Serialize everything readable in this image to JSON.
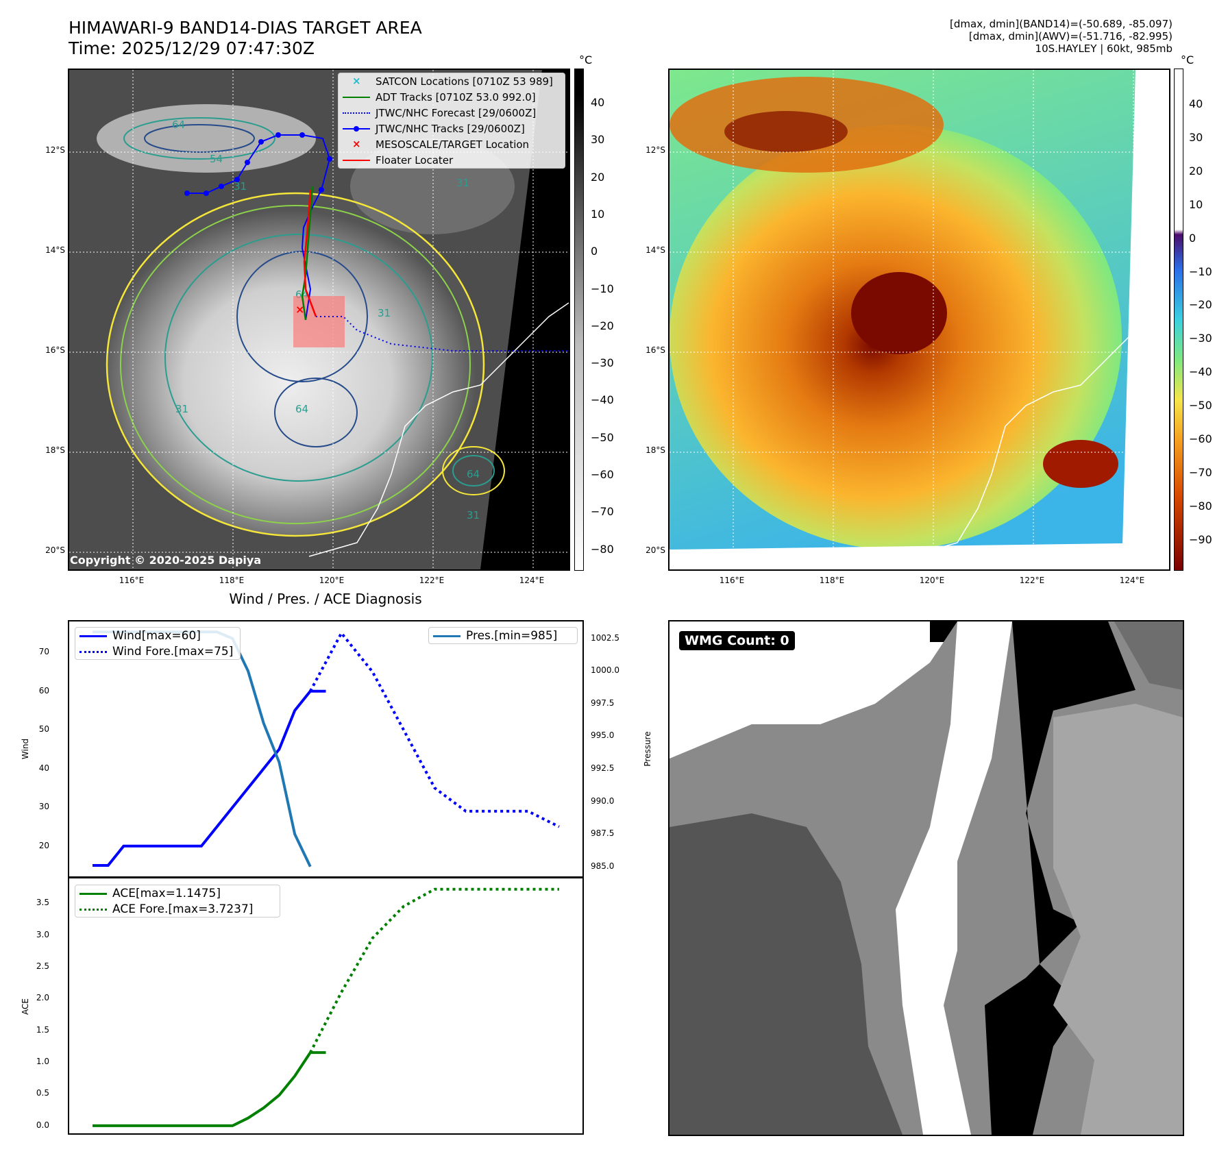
{
  "header": {
    "title": "HIMAWARI-9 BAND14-DIAS TARGET AREA",
    "time": "Time: 2025/12/29 07:47:30Z",
    "info_line1": "[dmax, dmin](BAND14)=(-50.689, -85.097)",
    "info_line2": "[dmax, dmin](AWV)=(-51.716, -82.995)",
    "info_line3": "10S.HAYLEY | 60kt, 985mb",
    "unit": "°C",
    "copyright": "Copyright © 2020-2025 Dapiya"
  },
  "map": {
    "lat_labels": [
      "12°S",
      "14°S",
      "16°S",
      "18°S",
      "20°S"
    ],
    "lon_labels": [
      "116°E",
      "118°E",
      "120°E",
      "122°E",
      "124°E"
    ],
    "legend": [
      {
        "label": "SATCON Locations [0710Z 53 989]",
        "color": "#17becf",
        "kind": "x"
      },
      {
        "label": "ADT Tracks [0710Z 53.0 992.0]",
        "color": "#008000",
        "kind": "line"
      },
      {
        "label": "JTWC/NHC Forecast [29/0600Z]",
        "color": "#0000ff",
        "kind": "dotted"
      },
      {
        "label": "JTWC/NHC Tracks [29/0600Z]",
        "color": "#0000ff",
        "kind": "linemarker"
      },
      {
        "label": "MESOSCALE/TARGET Location",
        "color": "#ff0000",
        "kind": "x"
      },
      {
        "label": "Floater Locater",
        "color": "#ff0000",
        "kind": "line"
      }
    ],
    "contour_labels": [
      "64",
      "54",
      "31",
      "31",
      "64",
      "31",
      "64",
      "31",
      "64",
      "31"
    ],
    "gray_colorbar_ticks": [
      "40",
      "30",
      "20",
      "10",
      "0",
      "−10",
      "−20",
      "−30",
      "−40",
      "−50",
      "−60",
      "−70",
      "−80"
    ],
    "color_colorbar_ticks": [
      "40",
      "30",
      "20",
      "10",
      "0",
      "−10",
      "−20",
      "−30",
      "−40",
      "−50",
      "−60",
      "−70",
      "−80",
      "−90"
    ]
  },
  "wmg": {
    "label": "WMG Count: 0"
  },
  "chart_data": [
    {
      "type": "line",
      "title": "Wind / Pres. / ACE Diagnosis",
      "ylabel": "Wind",
      "ylabel_right": "Pressure",
      "ylim": [
        12,
        78
      ],
      "ylim_right": [
        984.2,
        1003.8
      ],
      "yticks": [
        20,
        30,
        40,
        50,
        60,
        70
      ],
      "yticks_right": [
        "985.0",
        "987.5",
        "990.0",
        "992.5",
        "995.0",
        "997.5",
        "1000.0",
        "1002.5"
      ],
      "legend_left": [
        "Wind[max=60]",
        "Wind Fore.[max=75]"
      ],
      "legend_right": [
        "Pres.[min=985]"
      ],
      "series": [
        {
          "name": "Wind[max=60]",
          "color": "#0000ff",
          "style": "solid",
          "x": [
            0,
            1,
            2,
            3,
            4,
            5,
            6,
            7,
            8,
            9,
            10,
            11,
            12,
            13,
            14,
            15
          ],
          "values": [
            15,
            15,
            20,
            20,
            20,
            20,
            20,
            20,
            25,
            30,
            35,
            40,
            45,
            55,
            60,
            60
          ]
        },
        {
          "name": "Wind Fore.[max=75]",
          "color": "#0000ff",
          "style": "dotted",
          "x": [
            14,
            16,
            18,
            20,
            22,
            24,
            26,
            28,
            30
          ],
          "values": [
            60,
            75,
            65,
            50,
            35,
            29,
            29,
            29,
            25
          ]
        },
        {
          "name": "Pres.[min=985]",
          "color": "#1f77b4",
          "style": "solid",
          "axis": "right",
          "x": [
            0,
            1,
            2,
            3,
            4,
            5,
            6,
            7,
            8,
            9,
            10,
            11,
            12,
            13,
            14
          ],
          "values": [
            1003,
            1003,
            1003,
            1003,
            1003,
            1003,
            1003,
            1003,
            1003,
            1002.5,
            1000,
            996,
            993,
            987.5,
            985
          ]
        }
      ]
    },
    {
      "type": "line",
      "ylabel": "ACE",
      "ylim": [
        -0.12,
        3.9
      ],
      "yticks": [
        "0.0",
        "0.5",
        "1.0",
        "1.5",
        "2.0",
        "2.5",
        "3.0",
        "3.5"
      ],
      "legend": [
        "ACE[max=1.1475]",
        "ACE Fore.[max=3.7237]"
      ],
      "series": [
        {
          "name": "ACE[max=1.1475]",
          "color": "#008000",
          "style": "solid",
          "x": [
            0,
            2,
            4,
            6,
            8,
            9,
            10,
            11,
            12,
            13,
            14,
            15
          ],
          "values": [
            0,
            0,
            0,
            0,
            0,
            0,
            0.12,
            0.28,
            0.48,
            0.78,
            1.15,
            1.15
          ]
        },
        {
          "name": "ACE Fore.[max=3.7237]",
          "color": "#008000",
          "style": "dotted",
          "x": [
            14,
            16,
            18,
            20,
            22,
            24,
            26,
            28,
            30
          ],
          "values": [
            1.15,
            2.1,
            2.95,
            3.45,
            3.72,
            3.72,
            3.72,
            3.72,
            3.72
          ]
        }
      ]
    }
  ]
}
